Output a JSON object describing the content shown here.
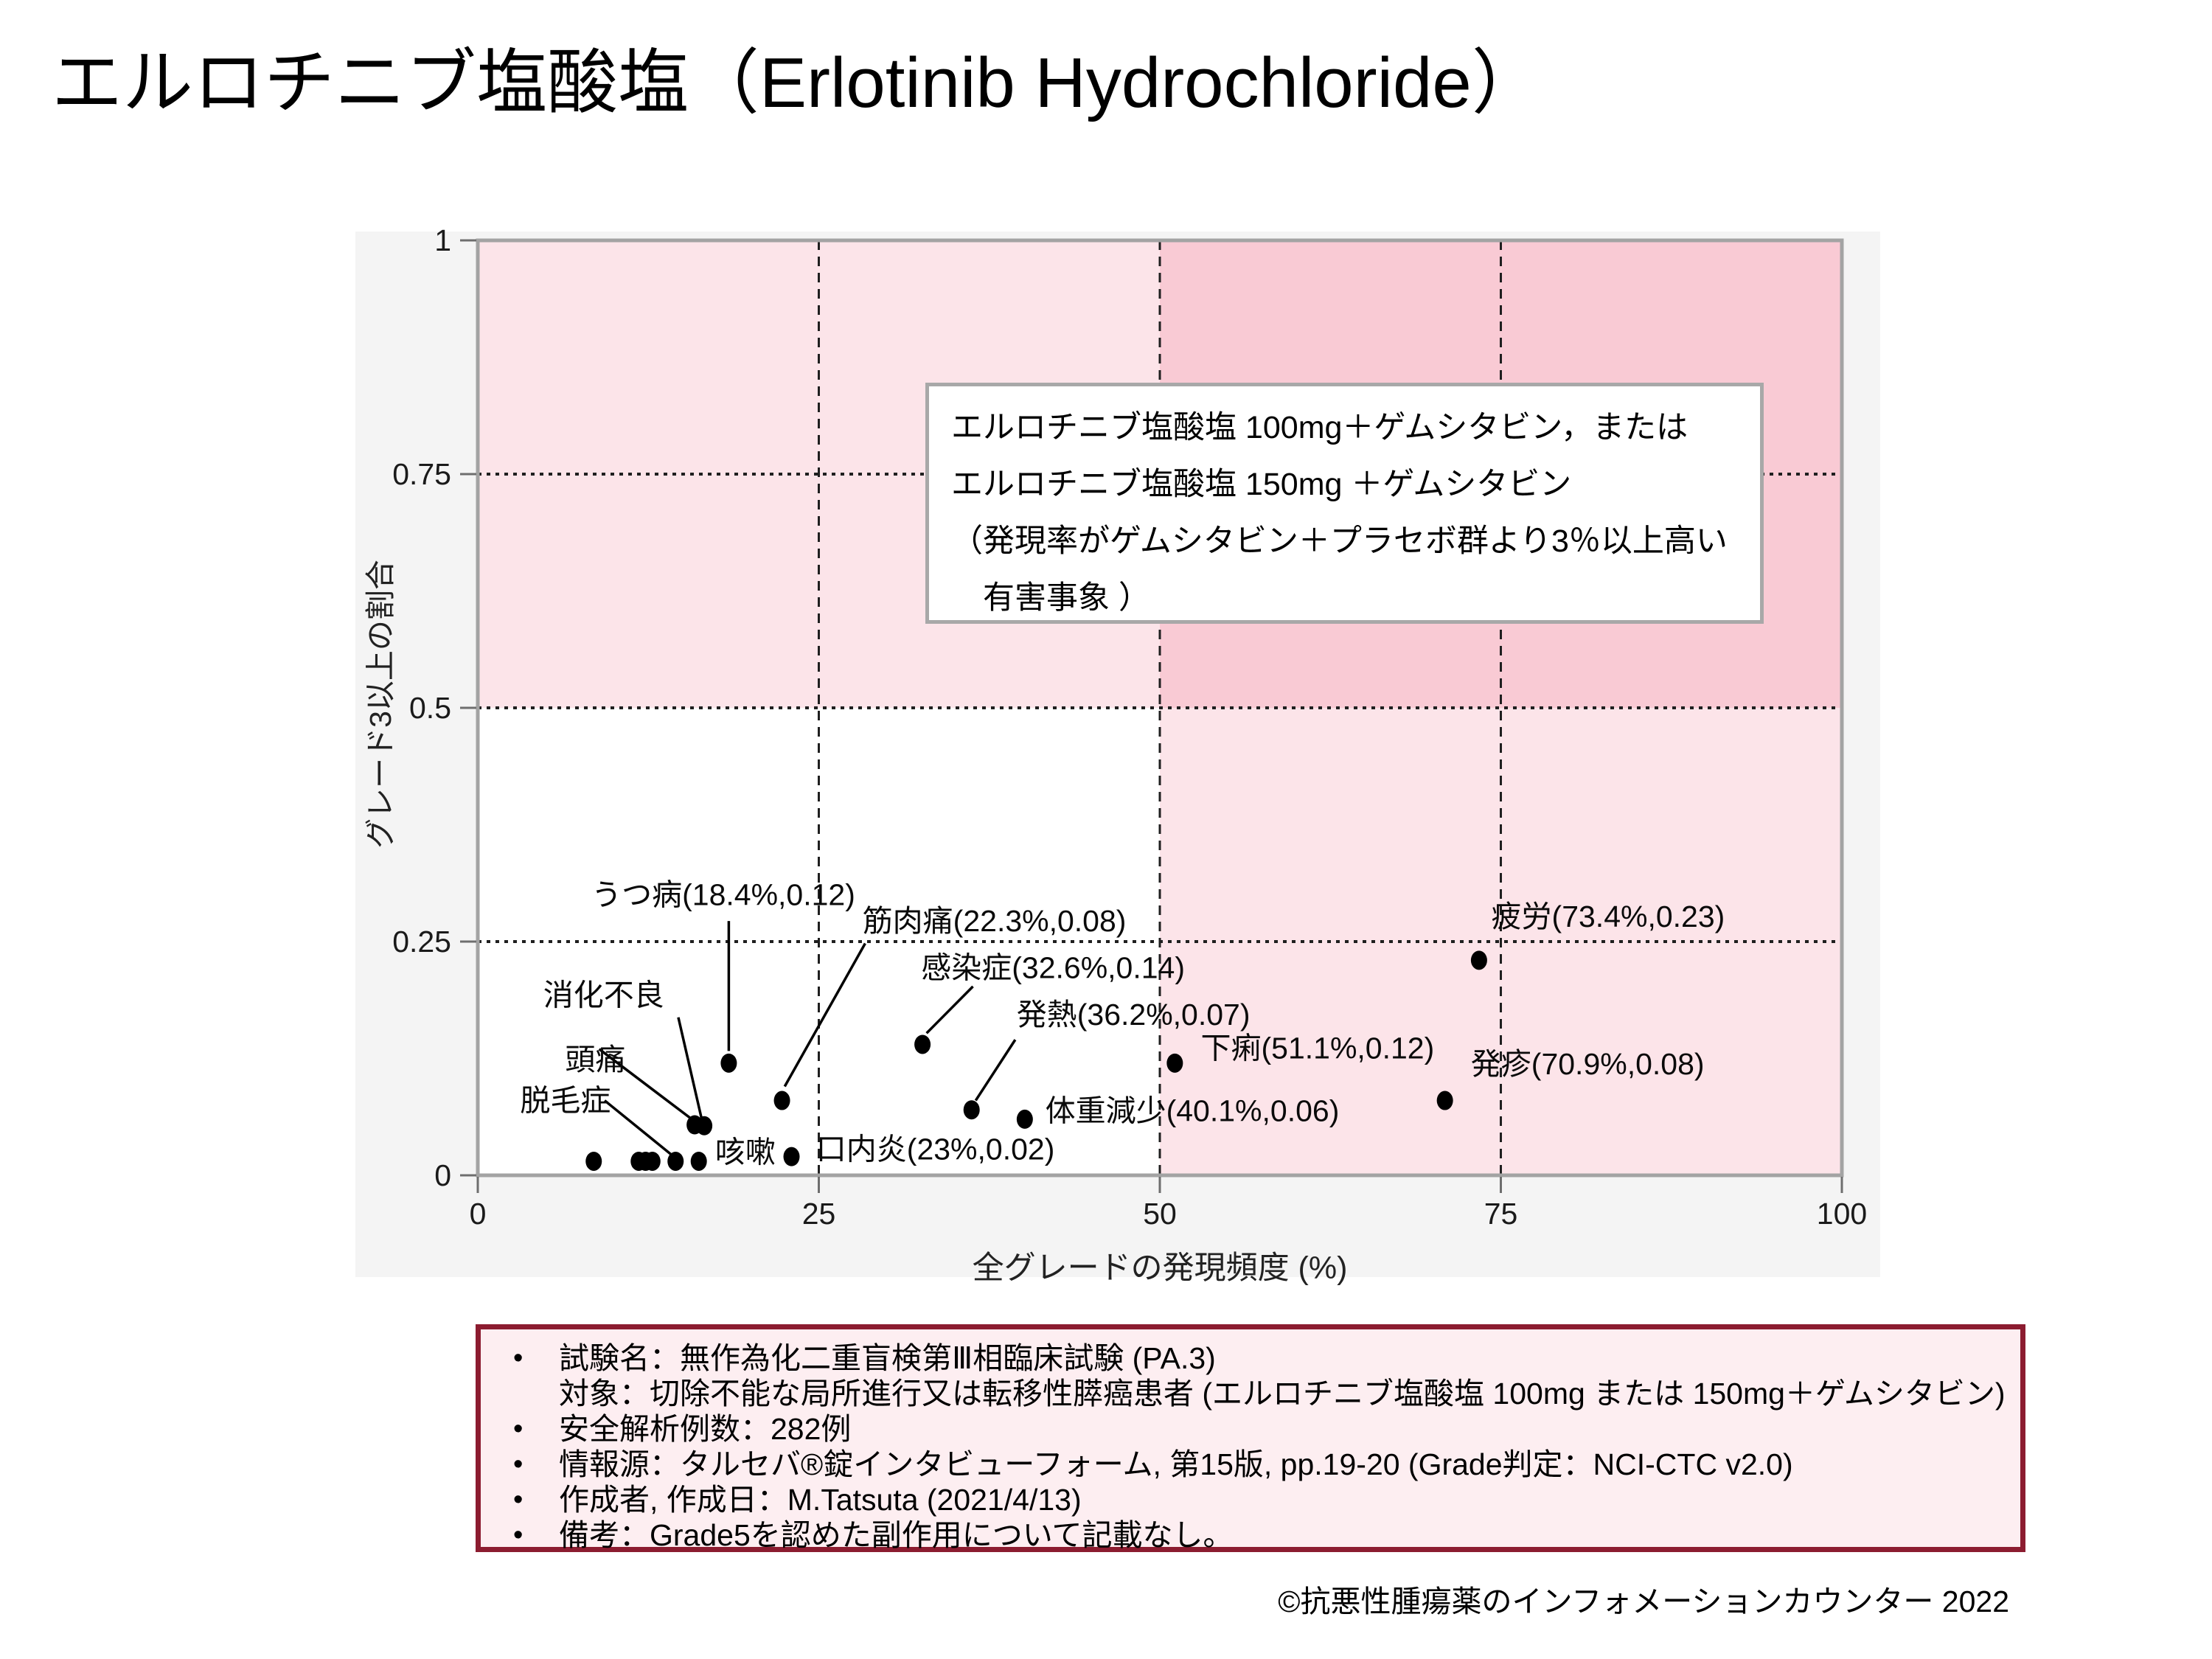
{
  "page": {
    "title": "エルロチニブ塩酸塩（Erlotinib Hydrochloride）",
    "copyright": "©抗悪性腫瘍薬のインフォメーションカウンター 2022"
  },
  "annotation_box": {
    "lines": [
      "エルロチニブ塩酸塩 100mg＋ゲムシタビン，または",
      "エルロチニブ塩酸塩 150mg ＋ゲムシタビン",
      "（発現率がゲムシタビン＋プラセボ群より3％以上高い",
      "　有害事象 ）"
    ]
  },
  "info_box": {
    "items": [
      {
        "bullet": "•",
        "text": "試験名：無作為化二重盲検第Ⅲ相臨床試験 (PA.3)"
      },
      {
        "bullet": "",
        "text": "対象：切除不能な局所進行又は転移性膵癌患者 (エルロチニブ塩酸塩 100mg または 150mg＋ゲムシタビン)"
      },
      {
        "bullet": "•",
        "text": "安全解析例数：282例"
      },
      {
        "bullet": "•",
        "text": "情報源：タルセバ®錠インタビューフォーム, 第15版, pp.19-20 (Grade判定：NCI-CTC v2.0)"
      },
      {
        "bullet": "•",
        "text": "作成者, 作成日：M.Tatsuta (2021/4/13)"
      },
      {
        "bullet": "•",
        "text": "備考：Grade5を認めた副作用について記載なし。"
      }
    ]
  },
  "chart_data": {
    "type": "scatter",
    "title": "",
    "xlabel": "全グレードの発現頻度 (%)",
    "ylabel": "グレード3以上の割合",
    "xlim": [
      0,
      100
    ],
    "ylim": [
      0,
      1
    ],
    "xticks": [
      0,
      25,
      50,
      75,
      100
    ],
    "yticks": [
      0,
      0.25,
      0.5,
      0.75,
      1
    ],
    "grid": {
      "x": [
        25,
        50,
        75
      ],
      "y": [
        0.25,
        0.5,
        0.75
      ]
    },
    "risk_threshold": {
      "x": 50,
      "y": 0.5
    },
    "colors": {
      "panel_bg": "#f4f4f4",
      "plot_bg": "#ffffff",
      "quadrant_light_pink": "#fce4e9",
      "quadrant_strong_pink": "#f9cad4",
      "plot_border": "#a3a3a3",
      "tick": "#6e6e6e",
      "gridline": "#1f1f1f",
      "point": "#000000",
      "info_border": "#8c1c30",
      "info_bg": "#fdeef1"
    },
    "points": [
      {
        "name": "疲労",
        "x": 73.4,
        "y": 0.23,
        "label": "疲労(73.4%,0.23)",
        "lx": 74.3,
        "ly": 0.277,
        "anchor": "start",
        "leader": null
      },
      {
        "name": "発疹",
        "x": 70.9,
        "y": 0.08,
        "label": "発疹(70.9%,0.08)",
        "lx": 72.8,
        "ly": 0.119,
        "anchor": "start",
        "leader": null
      },
      {
        "name": "下痢",
        "x": 51.1,
        "y": 0.12,
        "label": "下痢(51.1%,0.12)",
        "lx": 53.0,
        "ly": 0.136,
        "anchor": "start",
        "leader": null
      },
      {
        "name": "感染症",
        "x": 32.6,
        "y": 0.14,
        "label": "感染症(32.6%,0.14)",
        "lx": 32.5,
        "ly": 0.222,
        "anchor": "start",
        "leader": [
          36.3,
          0.202,
          32.9,
          0.152
        ]
      },
      {
        "name": "発熱",
        "x": 36.2,
        "y": 0.07,
        "label": "発熱(36.2%,0.07)",
        "lx": 39.5,
        "ly": 0.172,
        "anchor": "start",
        "leader": [
          39.4,
          0.145,
          36.5,
          0.08
        ]
      },
      {
        "name": "体重減少",
        "x": 40.1,
        "y": 0.06,
        "label": "体重減少(40.1%,0.06)",
        "lx": 41.6,
        "ly": 0.069,
        "anchor": "start",
        "leader": null
      },
      {
        "name": "口内炎",
        "x": 23.0,
        "y": 0.02,
        "label": "口内炎(23%,0.02)",
        "lx": 24.8,
        "ly": 0.028,
        "anchor": "start",
        "leader": null
      },
      {
        "name": "うつ病",
        "x": 18.4,
        "y": 0.12,
        "label": "うつ病(18.4%,0.12)",
        "lx": 18.0,
        "ly": 0.3,
        "anchor": "middle",
        "leader": [
          18.4,
          0.272,
          18.4,
          0.133
        ]
      },
      {
        "name": "筋肉痛",
        "x": 22.3,
        "y": 0.08,
        "label": "筋肉痛(22.3%,0.08)",
        "lx": 28.2,
        "ly": 0.272,
        "anchor": "start",
        "leader": [
          28.4,
          0.248,
          22.5,
          0.095
        ]
      },
      {
        "name": "咳嗽",
        "x": 16.2,
        "y": 0.015,
        "label": "咳嗽",
        "lx": 17.4,
        "ly": 0.025,
        "anchor": "start",
        "leader": null
      },
      {
        "name": "脱毛症",
        "x": 14.5,
        "y": 0.015,
        "label": "脱毛症",
        "lx": 3.1,
        "ly": 0.08,
        "anchor": "start",
        "leader": [
          9.3,
          0.08,
          14.2,
          0.022
        ]
      },
      {
        "name": "頭痛",
        "x": 15.9,
        "y": 0.054,
        "label": "頭痛",
        "lx": 6.4,
        "ly": 0.124,
        "anchor": "start",
        "leader": [
          8.9,
          0.135,
          15.6,
          0.061
        ]
      },
      {
        "name": "消化不良",
        "x": 16.6,
        "y": 0.053,
        "label": "消化不良",
        "lx": 4.8,
        "ly": 0.193,
        "anchor": "start",
        "leader": [
          14.7,
          0.169,
          16.4,
          0.061
        ]
      },
      {
        "name": "unlabeled-1",
        "x": 8.5,
        "y": 0.015,
        "label": null,
        "leader": null
      },
      {
        "name": "unlabeled-2",
        "x": 11.8,
        "y": 0.015,
        "label": null,
        "leader": null
      },
      {
        "name": "unlabeled-3",
        "x": 12.3,
        "y": 0.015,
        "label": null,
        "leader": null
      },
      {
        "name": "unlabeled-4",
        "x": 12.8,
        "y": 0.015,
        "label": null,
        "leader": null
      }
    ]
  }
}
